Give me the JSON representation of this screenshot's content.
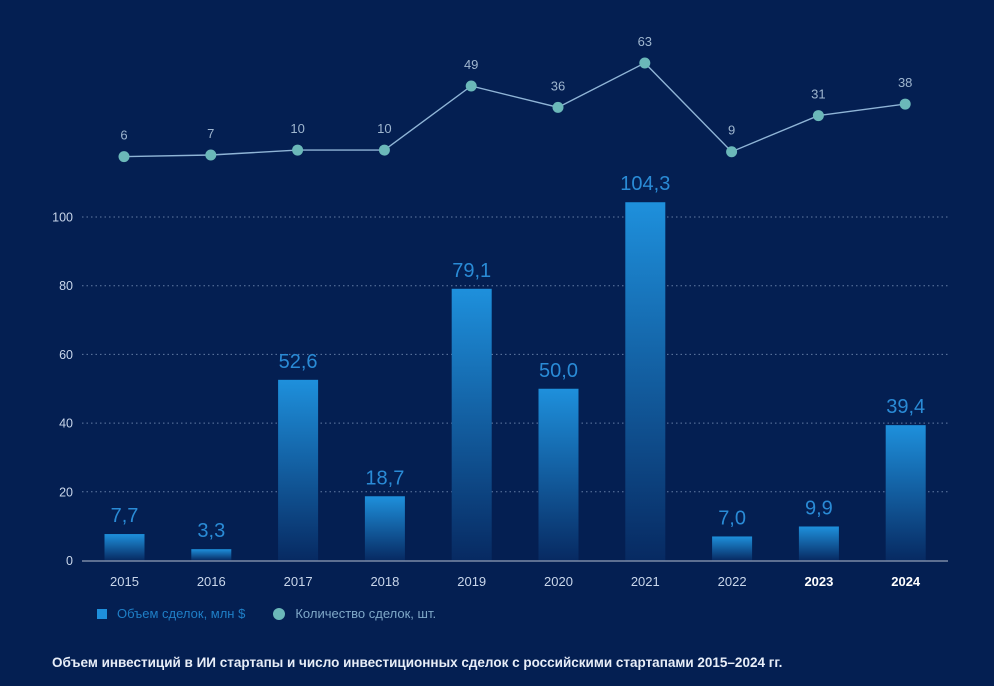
{
  "chart_data": {
    "type": "bar+line",
    "title": "Объем инвестиций в ИИ стартапы и число инвестиционных сделок с российскими стартапами 2015–2024 гг.",
    "categories": [
      "2015",
      "2016",
      "2017",
      "2018",
      "2019",
      "2020",
      "2021",
      "2022",
      "2023",
      "2024"
    ],
    "bold_categories": [
      "2023",
      "2024"
    ],
    "series": [
      {
        "name": "Объем сделок, млн $",
        "type": "bar",
        "values": [
          7.7,
          3.3,
          52.6,
          18.7,
          79.1,
          50.0,
          104.3,
          7.0,
          9.9,
          39.4
        ],
        "labels": [
          "7,7",
          "3,3",
          "52,6",
          "18,7",
          "79,1",
          "50,0",
          "104,3",
          "7,0",
          "9,9",
          "39,4"
        ],
        "color": "#1e8fdb"
      },
      {
        "name": "Количество сделок, шт.",
        "type": "line",
        "values": [
          6,
          7,
          10,
          10,
          49,
          36,
          63,
          9,
          31,
          38
        ],
        "labels": [
          "6",
          "7",
          "10",
          "10",
          "49",
          "36",
          "63",
          "9",
          "31",
          "38"
        ],
        "color": "#6bb8b9"
      }
    ],
    "yaxis": {
      "ticks": [
        0,
        20,
        40,
        60,
        80,
        100
      ],
      "tick_labels": [
        "0",
        "20",
        "40",
        "60",
        "80",
        "100"
      ],
      "ylim": [
        0,
        110
      ]
    },
    "grid": true,
    "legend_position": "bottom-left",
    "xlabel": "",
    "ylabel": ""
  },
  "legend": {
    "bar_label": "Объем сделок, млн $",
    "line_label": "Количество сделок, шт."
  },
  "caption": "Объем инвестиций в ИИ стартапы и число инвестиционных сделок с российскими стартапами 2015–2024 гг.",
  "colors": {
    "background": "#041f52",
    "bar_top": "#1e8fdb",
    "bar_label": "#2a8bd6",
    "line": "#8fb4d6",
    "line_dot": "#6bb8b9",
    "axis_text": "#c9d6ea"
  }
}
